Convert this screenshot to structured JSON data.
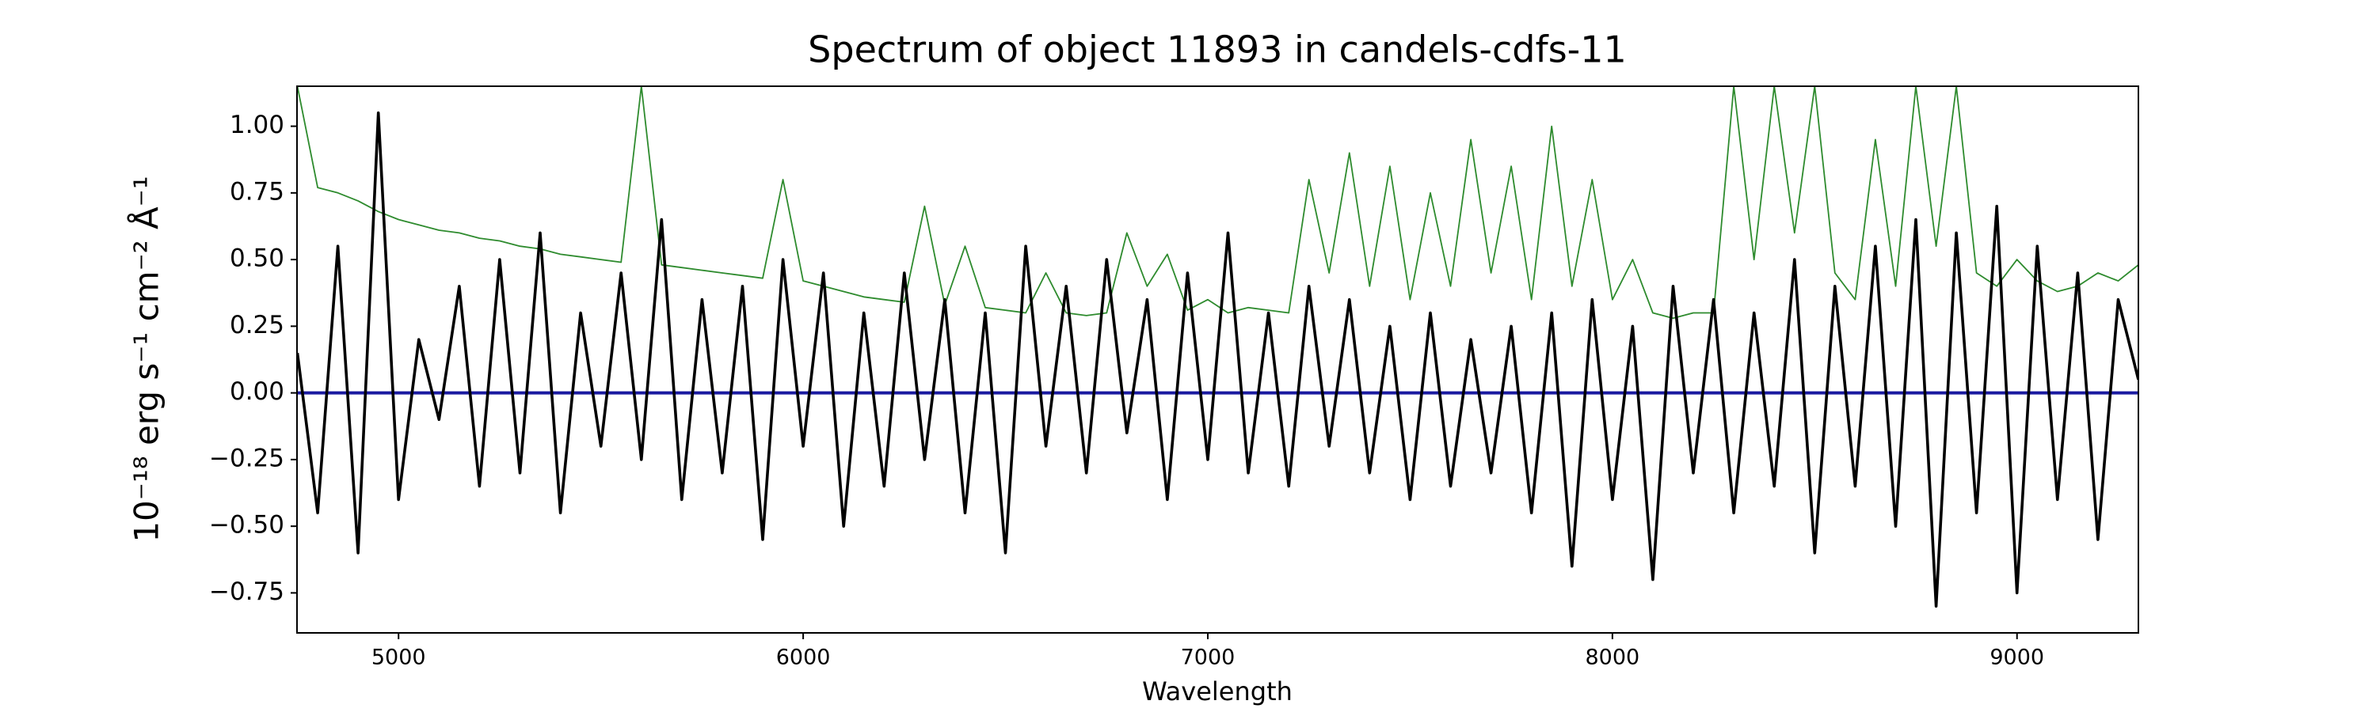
{
  "chart_data": {
    "type": "line",
    "title": "Spectrum of object 11893 in candels-cdfs-11",
    "xlabel": "Wavelength",
    "ylabel": "10⁻¹⁸ erg s⁻¹ cm⁻² Å⁻¹",
    "xlim": [
      4749,
      9300
    ],
    "ylim": [
      -0.9,
      1.15
    ],
    "xticks": [
      5000,
      6000,
      7000,
      8000,
      9000
    ],
    "yticks": [
      {
        "value": -0.75,
        "label": "−0.75"
      },
      {
        "value": -0.5,
        "label": "−0.50"
      },
      {
        "value": -0.25,
        "label": "−0.25"
      },
      {
        "value": 0,
        "label": "0.00"
      },
      {
        "value": 0.25,
        "label": "0.25"
      },
      {
        "value": 0.5,
        "label": "0.50"
      },
      {
        "value": 0.75,
        "label": "0.75"
      },
      {
        "value": 1,
        "label": "1.00"
      }
    ],
    "x": [
      4750,
      4800,
      4850,
      4900,
      4950,
      5000,
      5050,
      5100,
      5150,
      5200,
      5250,
      5300,
      5350,
      5400,
      5450,
      5500,
      5550,
      5600,
      5650,
      5700,
      5750,
      5800,
      5850,
      5900,
      5950,
      6000,
      6050,
      6100,
      6150,
      6200,
      6250,
      6300,
      6350,
      6400,
      6450,
      6500,
      6550,
      6600,
      6650,
      6700,
      6750,
      6800,
      6850,
      6900,
      6950,
      7000,
      7050,
      7100,
      7150,
      7200,
      7250,
      7300,
      7350,
      7400,
      7450,
      7500,
      7550,
      7600,
      7650,
      7700,
      7750,
      7800,
      7850,
      7900,
      7950,
      8000,
      8050,
      8100,
      8150,
      8200,
      8250,
      8300,
      8350,
      8400,
      8450,
      8500,
      8550,
      8600,
      8650,
      8700,
      8750,
      8800,
      8850,
      8900,
      8950,
      9000,
      9050,
      9100,
      9150,
      9200,
      9250,
      9300
    ],
    "series": [
      {
        "color": "#2e8b2e",
        "values": [
          1.15,
          0.77,
          0.75,
          0.72,
          0.68,
          0.65,
          0.63,
          0.61,
          0.6,
          0.58,
          0.57,
          0.55,
          0.54,
          0.52,
          0.51,
          0.5,
          0.49,
          1.15,
          0.48,
          0.47,
          0.46,
          0.45,
          0.44,
          0.43,
          0.8,
          0.42,
          0.4,
          0.38,
          0.36,
          0.35,
          0.34,
          0.7,
          0.33,
          0.55,
          0.32,
          0.31,
          0.3,
          0.45,
          0.3,
          0.29,
          0.3,
          0.6,
          0.4,
          0.52,
          0.31,
          0.35,
          0.3,
          0.32,
          0.31,
          0.3,
          0.8,
          0.45,
          0.9,
          0.4,
          0.85,
          0.35,
          0.75,
          0.4,
          0.95,
          0.45,
          0.85,
          0.35,
          1.0,
          0.4,
          0.8,
          0.35,
          0.5,
          0.3,
          0.28,
          0.3,
          0.3,
          1.15,
          0.5,
          1.15,
          0.6,
          1.15,
          0.45,
          0.35,
          0.95,
          0.4,
          1.15,
          0.55,
          1.15,
          0.45,
          0.4,
          0.5,
          0.42,
          0.38,
          0.4,
          0.45,
          0.42,
          0.48
        ]
      },
      {
        "color": "#1a1aa0",
        "x": [
          4749,
          9300
        ],
        "values": [
          0,
          0
        ]
      },
      {
        "color": "#000000",
        "values": [
          0.15,
          -0.45,
          0.55,
          -0.6,
          1.05,
          -0.4,
          0.2,
          -0.1,
          0.4,
          -0.35,
          0.5,
          -0.3,
          0.6,
          -0.45,
          0.3,
          -0.2,
          0.45,
          -0.25,
          0.65,
          -0.4,
          0.35,
          -0.3,
          0.4,
          -0.55,
          0.5,
          -0.2,
          0.45,
          -0.5,
          0.3,
          -0.35,
          0.45,
          -0.25,
          0.35,
          -0.45,
          0.3,
          -0.6,
          0.55,
          -0.2,
          0.4,
          -0.3,
          0.5,
          -0.15,
          0.35,
          -0.4,
          0.45,
          -0.25,
          0.6,
          -0.3,
          0.3,
          -0.35,
          0.4,
          -0.2,
          0.35,
          -0.3,
          0.25,
          -0.4,
          0.3,
          -0.35,
          0.2,
          -0.3,
          0.25,
          -0.45,
          0.3,
          -0.65,
          0.35,
          -0.4,
          0.25,
          -0.7,
          0.4,
          -0.3,
          0.35,
          -0.45,
          0.3,
          -0.35,
          0.5,
          -0.6,
          0.4,
          -0.35,
          0.55,
          -0.5,
          0.65,
          -0.8,
          0.6,
          -0.45,
          0.7,
          -0.75,
          0.55,
          -0.4,
          0.45,
          -0.55,
          0.35,
          0.05
        ]
      }
    ]
  }
}
